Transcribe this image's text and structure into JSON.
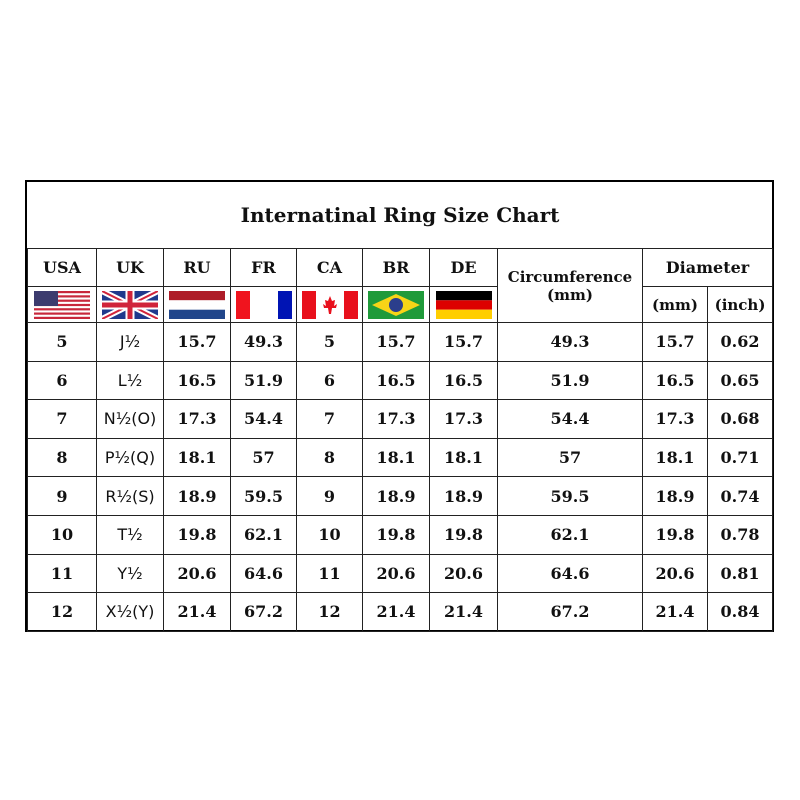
{
  "title": "Internatinal Ring Size Chart",
  "headers": {
    "usa": "USA",
    "uk": "UK",
    "ru": "RU",
    "fr": "FR",
    "ca": "CA",
    "br": "BR",
    "de": "DE",
    "circumference": "Circumference",
    "circumference_unit": "(mm)",
    "diameter": "Diameter",
    "diameter_mm": "(mm)",
    "diameter_inch": "(inch)"
  },
  "flags": [
    "us-flag",
    "uk-flag",
    "netherlands-flag",
    "france-flag",
    "canada-flag",
    "brazil-flag",
    "germany-flag"
  ],
  "rows": [
    [
      "5",
      "J½",
      "15.7",
      "49.3",
      "5",
      "15.7",
      "15.7",
      "49.3",
      "15.7",
      "0.62"
    ],
    [
      "6",
      "L½",
      "16.5",
      "51.9",
      "6",
      "16.5",
      "16.5",
      "51.9",
      "16.5",
      "0.65"
    ],
    [
      "7",
      "N½(O)",
      "17.3",
      "54.4",
      "7",
      "17.3",
      "17.3",
      "54.4",
      "17.3",
      "0.68"
    ],
    [
      "8",
      "P½(Q)",
      "18.1",
      "57",
      "8",
      "18.1",
      "18.1",
      "57",
      "18.1",
      "0.71"
    ],
    [
      "9",
      "R½(S)",
      "18.9",
      "59.5",
      "9",
      "18.9",
      "18.9",
      "59.5",
      "18.9",
      "0.74"
    ],
    [
      "10",
      "T½",
      "19.8",
      "62.1",
      "10",
      "19.8",
      "19.8",
      "62.1",
      "19.8",
      "0.78"
    ],
    [
      "11",
      "Y½",
      "20.6",
      "64.6",
      "11",
      "20.6",
      "20.6",
      "64.6",
      "20.6",
      "0.81"
    ],
    [
      "12",
      "X½(Y)",
      "21.4",
      "67.2",
      "12",
      "21.4",
      "21.4",
      "67.2",
      "21.4",
      "0.84"
    ]
  ]
}
